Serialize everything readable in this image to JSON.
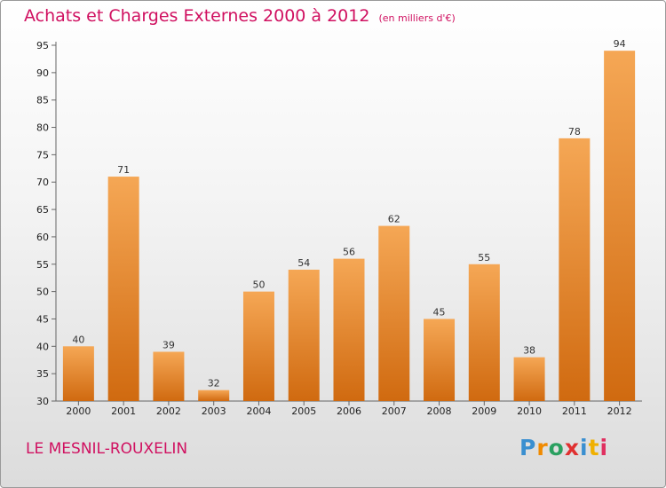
{
  "title": "Achats et Charges Externes 2000 à 2012",
  "unit": "(en milliers d'€)",
  "commune": "LE MESNIL-ROUXELIN",
  "logo": {
    "letters": [
      "P",
      "r",
      "o",
      "x",
      "i",
      "t",
      "i"
    ],
    "colors": [
      "#3a8fd0",
      "#f08a00",
      "#2aa060",
      "#e03030",
      "#3a8fd0",
      "#f0b000",
      "#e03060"
    ]
  },
  "colors": {
    "bar_top": "#f5a755",
    "bar_bottom": "#d06a10",
    "title": "#d01060"
  },
  "chart_data": {
    "type": "bar",
    "categories": [
      "2000",
      "2001",
      "2002",
      "2003",
      "2004",
      "2005",
      "2006",
      "2007",
      "2008",
      "2009",
      "2010",
      "2011",
      "2012"
    ],
    "values": [
      40,
      71,
      39,
      32,
      50,
      54,
      56,
      62,
      45,
      55,
      38,
      78,
      94
    ],
    "ylim": [
      30,
      95
    ],
    "yticks": [
      30,
      35,
      40,
      45,
      50,
      55,
      60,
      65,
      70,
      75,
      80,
      85,
      90,
      95
    ],
    "grid": false
  }
}
